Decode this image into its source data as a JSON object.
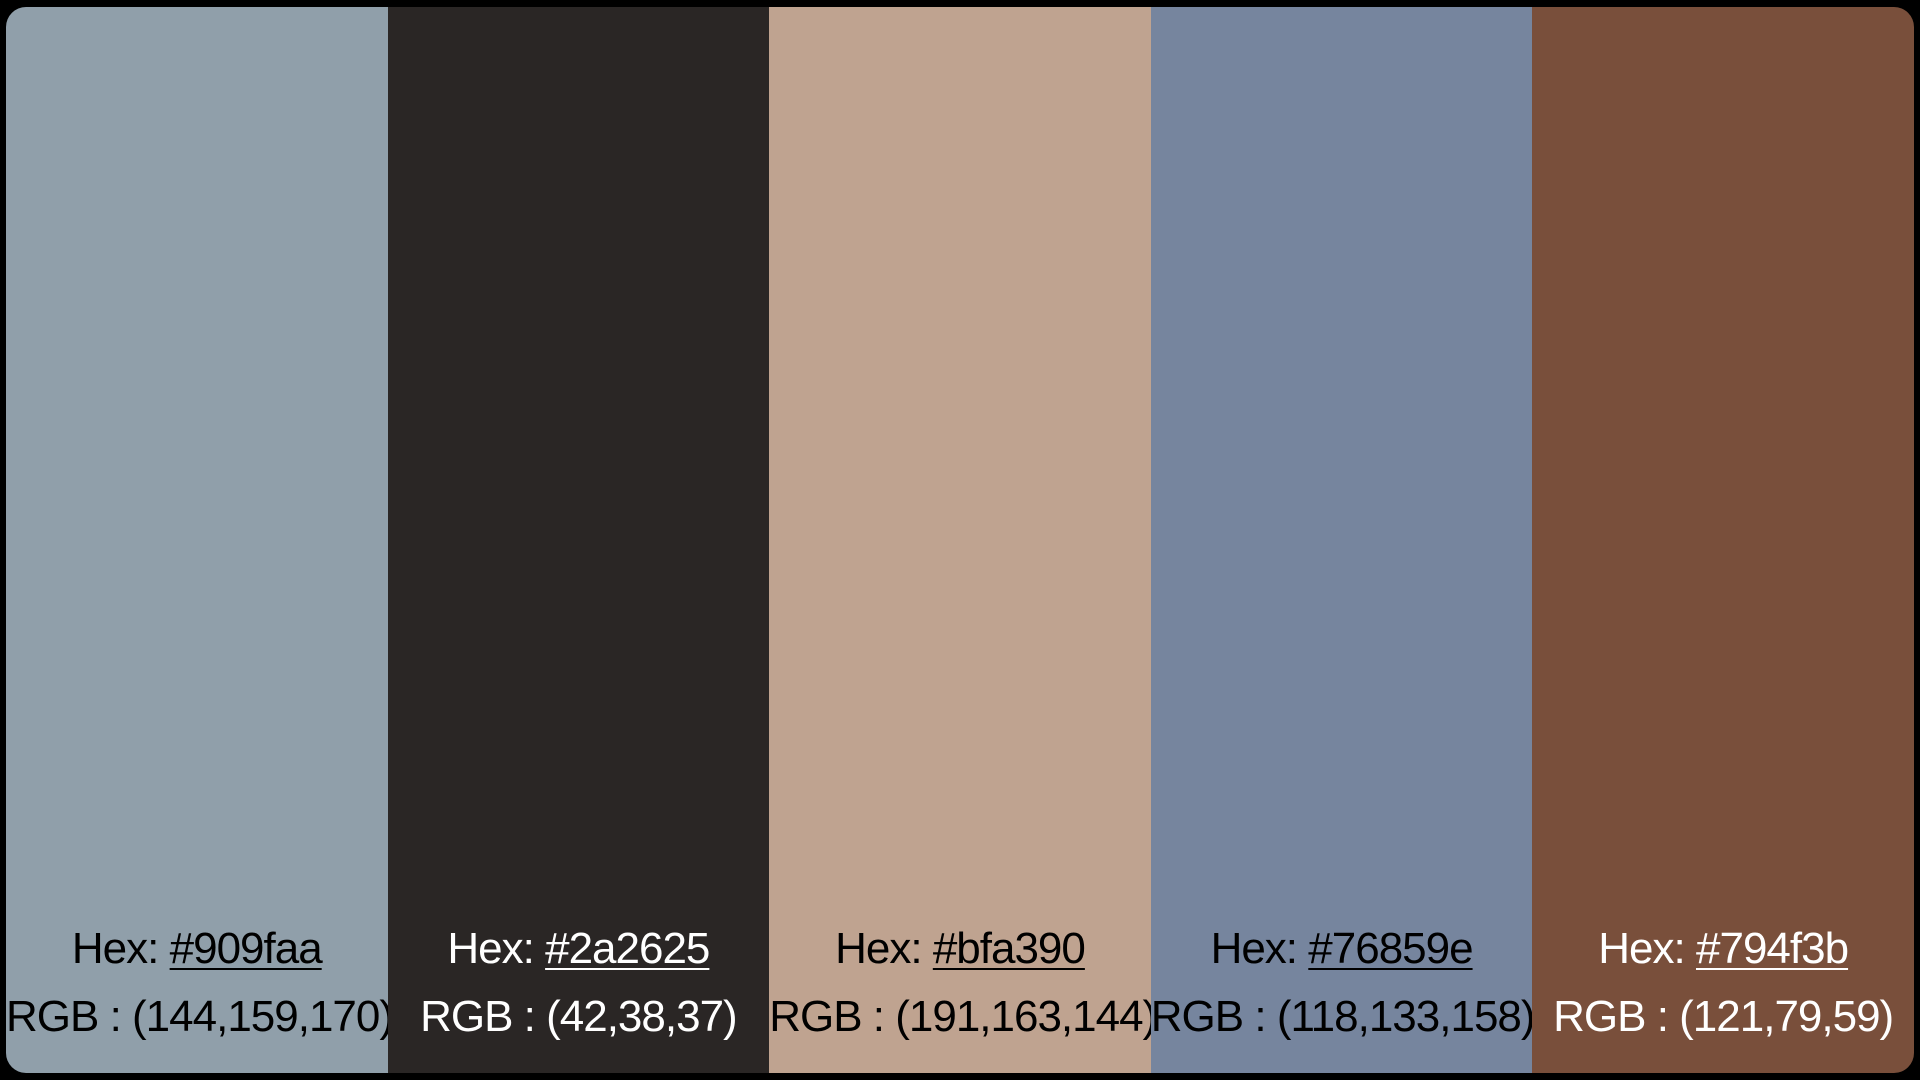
{
  "swatches": [
    {
      "color": "#909faa",
      "text_color": "#000000",
      "hex_label": "Hex:",
      "hex": "#909faa",
      "rgb_label": "RGB :",
      "rgb": "(144,159,170)"
    },
    {
      "color": "#2a2625",
      "text_color": "#ffffff",
      "hex_label": "Hex:",
      "hex": "#2a2625",
      "rgb_label": "RGB :",
      "rgb": "(42,38,37)"
    },
    {
      "color": "#bfa390",
      "text_color": "#000000",
      "hex_label": "Hex:",
      "hex": "#bfa390",
      "rgb_label": "RGB :",
      "rgb": "(191,163,144)"
    },
    {
      "color": "#76859e",
      "text_color": "#000000",
      "hex_label": "Hex:",
      "hex": "#76859e",
      "rgb_label": "RGB :",
      "rgb": "(118,133,158)"
    },
    {
      "color": "#794f3b",
      "text_color": "#ffffff",
      "hex_label": "Hex:",
      "hex": "#794f3b",
      "rgb_label": "RGB :",
      "rgb": "(121,79,59)"
    }
  ],
  "frame_color": "#000000"
}
